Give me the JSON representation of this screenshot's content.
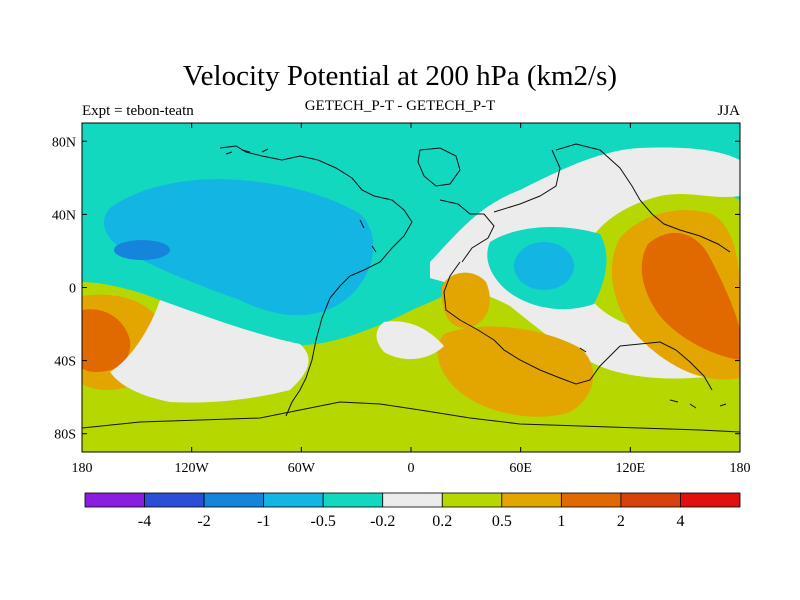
{
  "chart_data": {
    "type": "heatmap",
    "title": "Velocity Potential at 200 hPa (km2/s)",
    "subtitle_left": "Expt = tebon-teatn",
    "subtitle_center": "GETECH_P-T - GETECH_P-T",
    "subtitle_right": "JJA",
    "x_ticks": [
      {
        "value": -180,
        "label": "180"
      },
      {
        "value": -120,
        "label": "120W"
      },
      {
        "value": -60,
        "label": "60W"
      },
      {
        "value": 0,
        "label": "0"
      },
      {
        "value": 60,
        "label": "60E"
      },
      {
        "value": 120,
        "label": "120E"
      },
      {
        "value": 180,
        "label": "180"
      }
    ],
    "y_ticks": [
      {
        "value": 80,
        "label": "80N"
      },
      {
        "value": 40,
        "label": "40N"
      },
      {
        "value": 0,
        "label": "0"
      },
      {
        "value": -40,
        "label": "40S"
      },
      {
        "value": -80,
        "label": "80S"
      }
    ],
    "xlim": [
      -180,
      180
    ],
    "ylim": [
      -90,
      90
    ],
    "colorbar": {
      "levels": [
        "-4",
        "-2",
        "-1",
        "-0.5",
        "-0.2",
        "0.2",
        "0.5",
        "1",
        "2",
        "4"
      ],
      "colors": [
        "#8a1ee0",
        "#2a4fd6",
        "#1585dc",
        "#13b5e2",
        "#12d8c0",
        "#ececec",
        "#b6d800",
        "#e3a600",
        "#e06a00",
        "#d8400c",
        "#e01010"
      ]
    },
    "field_regions": [
      {
        "name": "background-positive-band",
        "color": "#b6d800"
      },
      {
        "name": "northern-negative-region",
        "color": "#12d8c0"
      },
      {
        "name": "north-atlantic-neutral",
        "color": "#ececec"
      },
      {
        "name": "north-pacific-negative-core",
        "color": "#13b5e2"
      },
      {
        "name": "north-pacific-min",
        "color": "#1585dc"
      },
      {
        "name": "central-asia-negative",
        "color": "#12d8c0"
      },
      {
        "name": "central-asia-negative-core",
        "color": "#13b5e2"
      },
      {
        "name": "pacific-positive-core",
        "color": "#e3a600"
      },
      {
        "name": "pacific-positive-max",
        "color": "#e06a00"
      },
      {
        "name": "south-pacific-positive-core",
        "color": "#e3a600"
      },
      {
        "name": "south-pacific-positive-max",
        "color": "#e06a00"
      },
      {
        "name": "africa-positive-core",
        "color": "#e3a600"
      },
      {
        "name": "southern-ocean-positive",
        "color": "#e3a600"
      },
      {
        "name": "southern-neutral-band",
        "color": "#ececec"
      }
    ]
  }
}
